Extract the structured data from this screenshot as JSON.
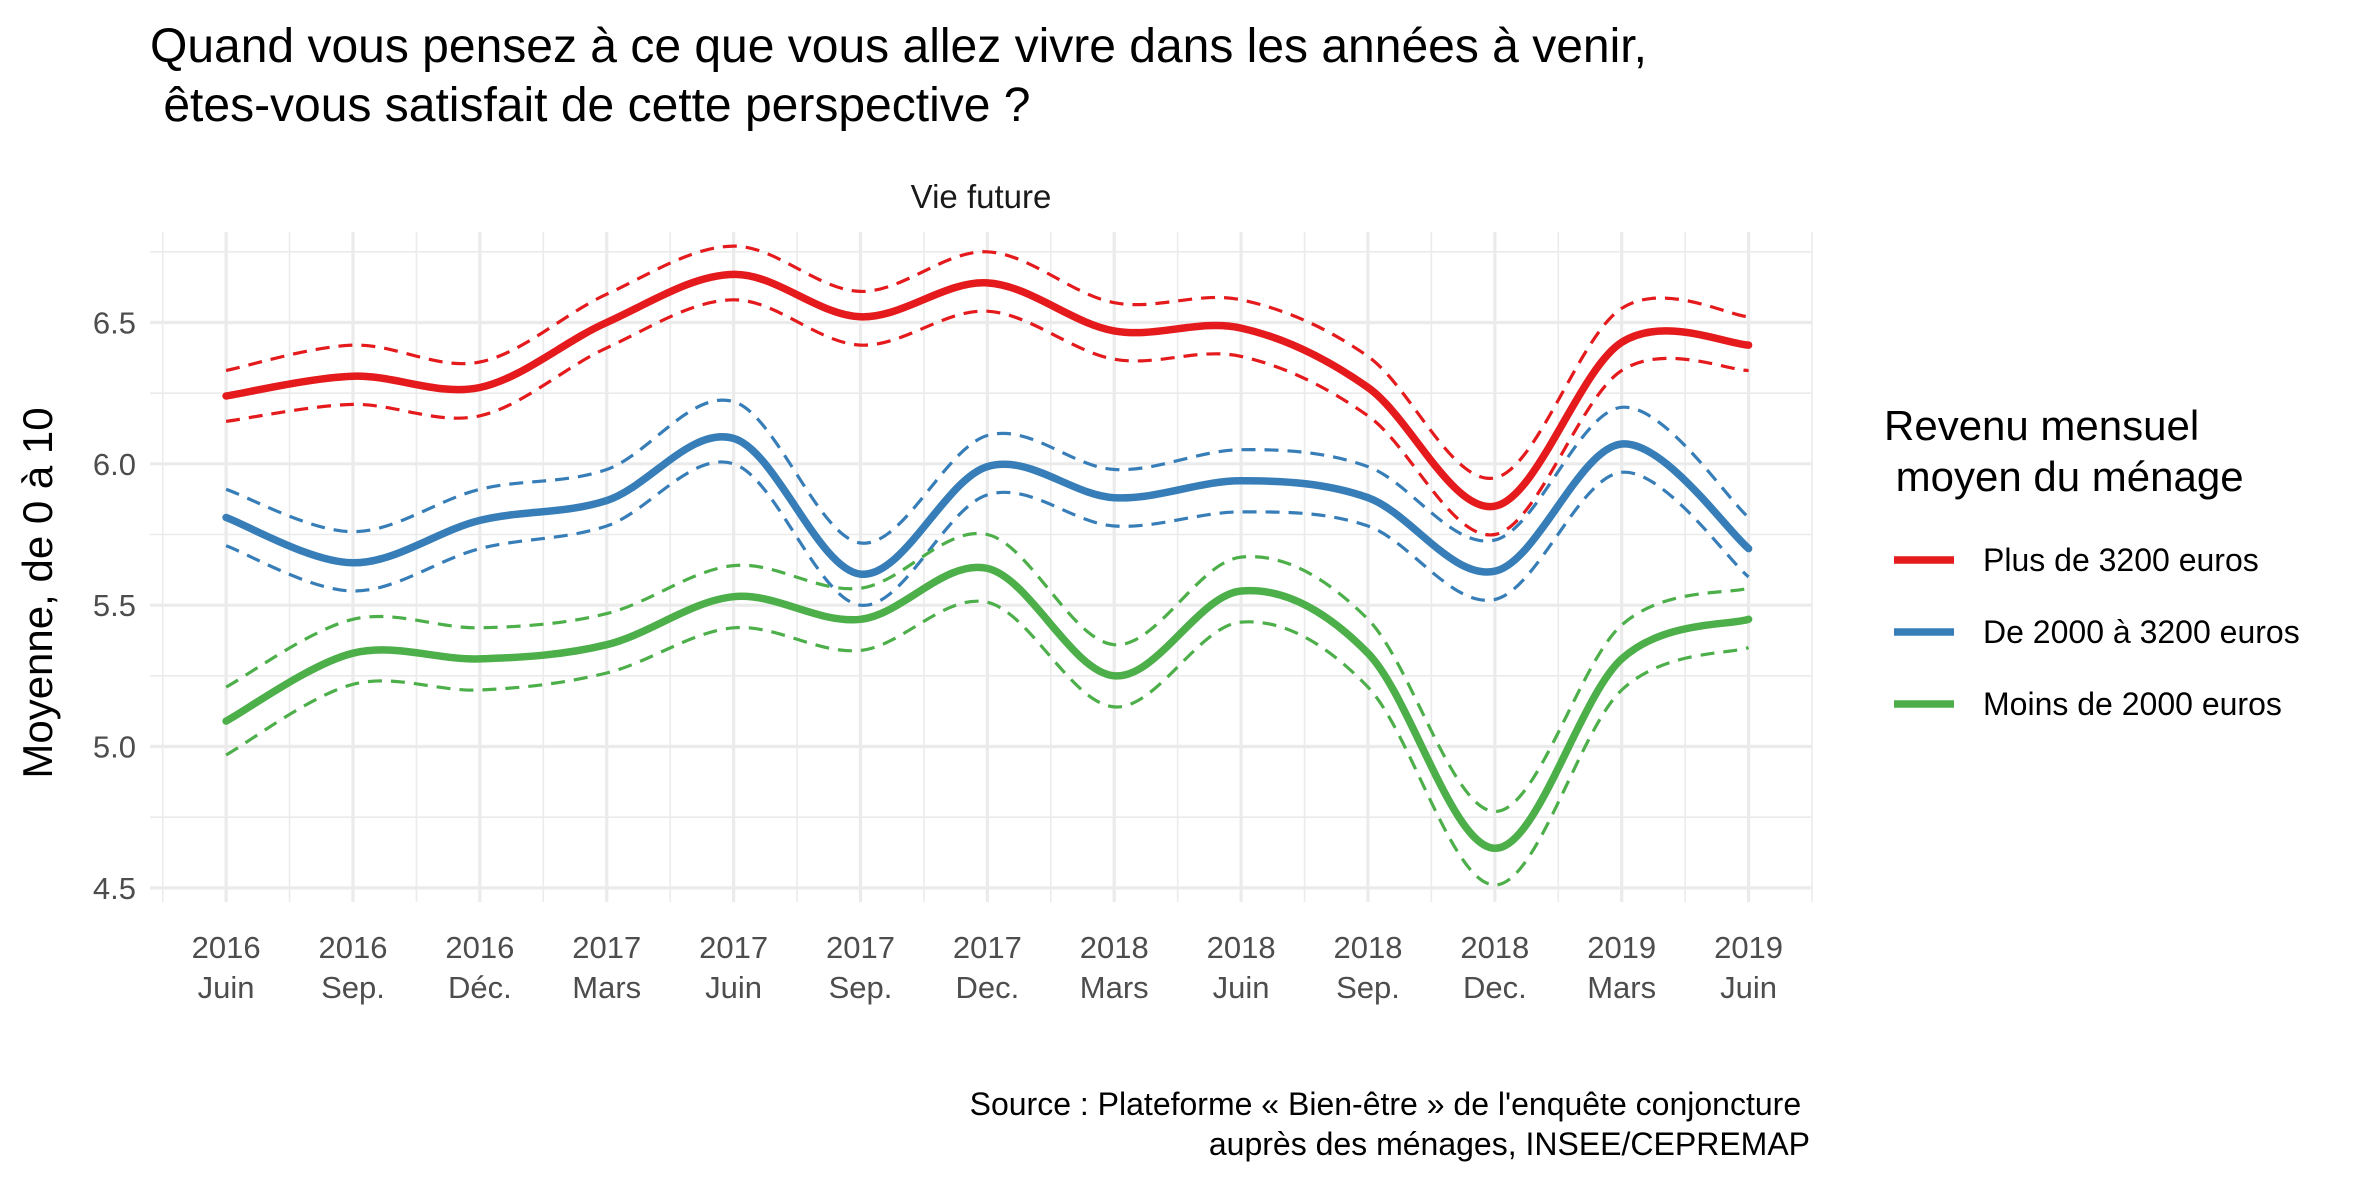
{
  "chart_data": {
    "type": "line",
    "title_lines": [
      "Quand vous pensez à ce que vous allez vivre dans les années à venir,",
      " êtes-vous satisfait de cette perspective ?"
    ],
    "facet_label": "Vie future",
    "ylabel": "Moyenne, de 0 à 10",
    "xlabel": "",
    "ylim": [
      4.45,
      6.82
    ],
    "xlim": [
      -0.6,
      12.5
    ],
    "y_ticks": [
      4.5,
      5.0,
      5.5,
      6.0,
      6.5
    ],
    "y_tick_labels": [
      "4.5",
      "5.0",
      "5.5",
      "6.0",
      "6.5"
    ],
    "x_ticks": [
      0,
      1,
      2,
      3,
      4,
      5,
      6,
      7,
      8,
      9,
      10,
      11,
      12
    ],
    "x_tick_labels": [
      [
        "2016",
        "Juin"
      ],
      [
        "2016",
        "Sep."
      ],
      [
        "2016",
        "Déc."
      ],
      [
        "2017",
        "Mars"
      ],
      [
        "2017",
        "Juin"
      ],
      [
        "2017",
        "Sep."
      ],
      [
        "2017",
        "Dec."
      ],
      [
        "2018",
        "Mars"
      ],
      [
        "2018",
        "Juin"
      ],
      [
        "2018",
        "Sep."
      ],
      [
        "2018",
        "Dec."
      ],
      [
        "2019",
        "Mars"
      ],
      [
        "2019",
        "Juin"
      ]
    ],
    "grid": true,
    "legend": {
      "title_lines": [
        "Revenu mensuel",
        " moyen du ménage"
      ],
      "position": "right"
    },
    "x": [
      0,
      1,
      2,
      3,
      4,
      5,
      6,
      7,
      8,
      9,
      10,
      11,
      12
    ],
    "series": [
      {
        "name": "Plus de 3200 euros",
        "color": "#E41A1C",
        "values": [
          6.24,
          6.31,
          6.27,
          6.5,
          6.67,
          6.52,
          6.64,
          6.47,
          6.48,
          6.27,
          5.85,
          6.43,
          6.42
        ],
        "upper": [
          6.33,
          6.42,
          6.36,
          6.6,
          6.77,
          6.61,
          6.75,
          6.57,
          6.58,
          6.38,
          5.95,
          6.55,
          6.52
        ],
        "lower": [
          6.15,
          6.21,
          6.17,
          6.41,
          6.58,
          6.42,
          6.54,
          6.37,
          6.38,
          6.17,
          5.75,
          6.33,
          6.33
        ]
      },
      {
        "name": "De 2000 à 3200 euros",
        "color": "#377EB8",
        "values": [
          5.81,
          5.65,
          5.8,
          5.87,
          6.09,
          5.61,
          5.99,
          5.88,
          5.94,
          5.88,
          5.62,
          6.07,
          5.7
        ],
        "upper": [
          5.91,
          5.76,
          5.91,
          5.98,
          6.22,
          5.72,
          6.1,
          5.98,
          6.05,
          5.99,
          5.73,
          6.2,
          5.81
        ],
        "lower": [
          5.71,
          5.55,
          5.7,
          5.78,
          6.0,
          5.5,
          5.89,
          5.78,
          5.83,
          5.78,
          5.52,
          5.97,
          5.6
        ]
      },
      {
        "name": "Moins de 2000 euros",
        "color": "#4DAF4A",
        "values": [
          5.09,
          5.33,
          5.31,
          5.36,
          5.53,
          5.45,
          5.63,
          5.25,
          5.55,
          5.33,
          4.64,
          5.31,
          5.45
        ],
        "upper": [
          5.21,
          5.45,
          5.42,
          5.47,
          5.64,
          5.56,
          5.75,
          5.36,
          5.67,
          5.45,
          4.77,
          5.43,
          5.56
        ],
        "lower": [
          4.97,
          5.22,
          5.2,
          5.26,
          5.42,
          5.34,
          5.51,
          5.14,
          5.44,
          5.21,
          4.51,
          5.2,
          5.35
        ]
      }
    ],
    "caption_lines": [
      "Source : Plateforme « Bien-être » de l'enquête conjoncture ",
      "auprès des ménages, INSEE/CEPREMAP"
    ]
  }
}
